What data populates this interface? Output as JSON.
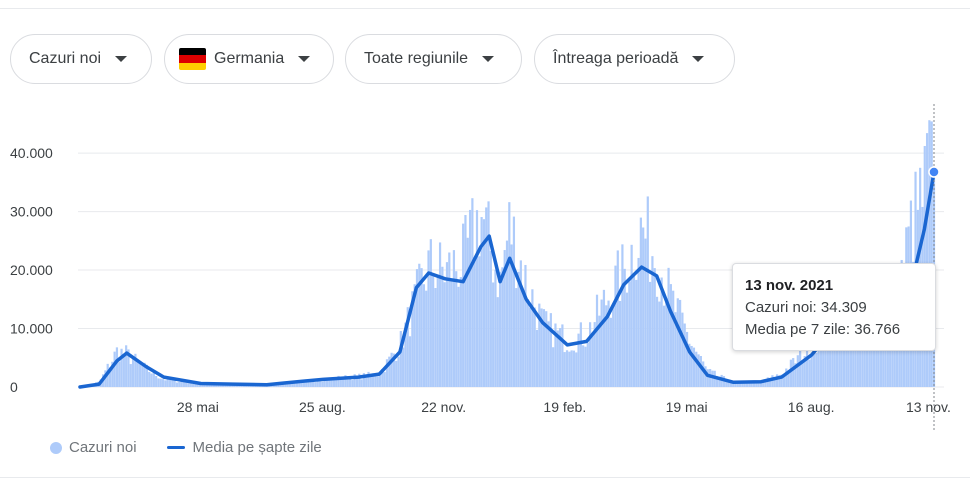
{
  "filters": [
    {
      "label": "Cazuri noi",
      "flag": false
    },
    {
      "label": "Germania",
      "flag": true
    },
    {
      "label": "Toate regiunile",
      "flag": false
    },
    {
      "label": "Întreaga perioadă",
      "flag": false
    }
  ],
  "flag_colors": [
    "#000000",
    "#dd0000",
    "#ffce00"
  ],
  "colors": {
    "bars": "#aecbfa",
    "line": "#1a66d1",
    "grid": "#e8eaed",
    "point": "#4285f4"
  },
  "chart_data": {
    "type": "bar",
    "y_ticks": [
      0,
      10000,
      20000,
      30000,
      40000
    ],
    "y_tick_labels": [
      "0",
      "10.000",
      "20.000",
      "30.000",
      "40.000"
    ],
    "ylim": [
      0,
      46000
    ],
    "x_tick_labels": [
      "28 mai",
      "25 aug.",
      "22 nov.",
      "19 feb.",
      "19 mai",
      "16 aug.",
      "13 nov."
    ],
    "grid": true,
    "series": [
      {
        "name": "Cazuri noi",
        "kind": "bar",
        "points": [
          [
            "2020-03-01",
            50
          ],
          [
            "2020-03-15",
            900
          ],
          [
            "2020-03-28",
            6800
          ],
          [
            "2020-04-04",
            6300
          ],
          [
            "2020-04-18",
            3500
          ],
          [
            "2020-05-01",
            1500
          ],
          [
            "2020-05-28",
            600
          ],
          [
            "2020-06-20",
            700
          ],
          [
            "2020-07-15",
            400
          ],
          [
            "2020-08-25",
            1500
          ],
          [
            "2020-09-20",
            2000
          ],
          [
            "2020-10-05",
            2500
          ],
          [
            "2020-10-20",
            8000
          ],
          [
            "2020-11-01",
            17000
          ],
          [
            "2020-11-10",
            23000
          ],
          [
            "2020-11-22",
            22000
          ],
          [
            "2020-12-05",
            24000
          ],
          [
            "2020-12-18",
            33000
          ],
          [
            "2021-01-01",
            20000
          ],
          [
            "2021-01-08",
            31000
          ],
          [
            "2021-01-20",
            20000
          ],
          [
            "2021-02-01",
            12000
          ],
          [
            "2021-02-19",
            9000
          ],
          [
            "2021-03-05",
            10000
          ],
          [
            "2021-03-20",
            17000
          ],
          [
            "2021-04-01",
            22000
          ],
          [
            "2021-04-14",
            30000
          ],
          [
            "2021-04-25",
            25000
          ],
          [
            "2021-05-05",
            17000
          ],
          [
            "2021-05-19",
            9000
          ],
          [
            "2021-06-01",
            3000
          ],
          [
            "2021-06-20",
            800
          ],
          [
            "2021-07-10",
            1000
          ],
          [
            "2021-07-25",
            2500
          ],
          [
            "2021-08-16",
            8000
          ],
          [
            "2021-09-01",
            14000
          ],
          [
            "2021-09-15",
            10000
          ],
          [
            "2021-10-01",
            12000
          ],
          [
            "2021-10-15",
            15000
          ],
          [
            "2021-10-28",
            31000
          ],
          [
            "2021-11-06",
            37000
          ],
          [
            "2021-11-10",
            45500
          ],
          [
            "2021-11-13",
            34309
          ]
        ]
      },
      {
        "name": "Media pe șapte zile",
        "kind": "line",
        "points": [
          [
            "2020-03-01",
            0
          ],
          [
            "2020-03-15",
            500
          ],
          [
            "2020-03-28",
            4500
          ],
          [
            "2020-04-04",
            5800
          ],
          [
            "2020-04-18",
            3500
          ],
          [
            "2020-05-01",
            1700
          ],
          [
            "2020-05-28",
            600
          ],
          [
            "2020-06-20",
            500
          ],
          [
            "2020-07-15",
            400
          ],
          [
            "2020-08-10",
            1000
          ],
          [
            "2020-08-25",
            1300
          ],
          [
            "2020-09-20",
            1700
          ],
          [
            "2020-10-05",
            2200
          ],
          [
            "2020-10-20",
            6000
          ],
          [
            "2020-11-01",
            17000
          ],
          [
            "2020-11-10",
            19500
          ],
          [
            "2020-11-22",
            18500
          ],
          [
            "2020-12-05",
            18000
          ],
          [
            "2020-12-18",
            24000
          ],
          [
            "2020-12-24",
            25800
          ],
          [
            "2021-01-01",
            18000
          ],
          [
            "2021-01-08",
            22000
          ],
          [
            "2021-01-20",
            15000
          ],
          [
            "2021-02-01",
            11000
          ],
          [
            "2021-02-19",
            7200
          ],
          [
            "2021-03-05",
            7800
          ],
          [
            "2021-03-20",
            12000
          ],
          [
            "2021-04-01",
            17500
          ],
          [
            "2021-04-14",
            20500
          ],
          [
            "2021-04-25",
            19000
          ],
          [
            "2021-05-05",
            13000
          ],
          [
            "2021-05-19",
            6000
          ],
          [
            "2021-06-01",
            2000
          ],
          [
            "2021-06-20",
            800
          ],
          [
            "2021-07-10",
            900
          ],
          [
            "2021-07-25",
            1700
          ],
          [
            "2021-08-16",
            5500
          ],
          [
            "2021-09-01",
            10000
          ],
          [
            "2021-09-15",
            9500
          ],
          [
            "2021-10-01",
            9000
          ],
          [
            "2021-10-15",
            11000
          ],
          [
            "2021-10-28",
            18000
          ],
          [
            "2021-11-06",
            27000
          ],
          [
            "2021-11-13",
            36766
          ]
        ]
      }
    ],
    "legend": {
      "position": "bottom-left",
      "items": [
        "Cazuri noi",
        "Media pe șapte zile"
      ]
    },
    "tooltip": {
      "title": "13 nov. 2021",
      "line1": "Cazuri noi: 34.309",
      "line2": "Media pe 7 zile: 36.766"
    }
  }
}
